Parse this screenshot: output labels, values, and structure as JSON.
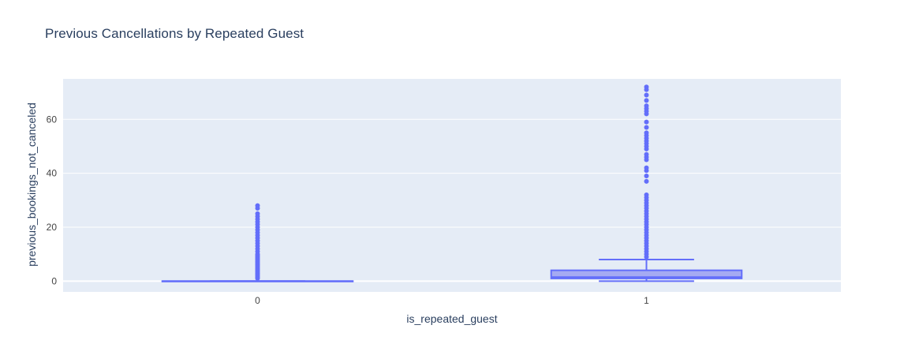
{
  "chart_data": {
    "type": "box",
    "title": "Previous Cancellations by Repeated Guest",
    "xlabel": "is_repeated_guest",
    "ylabel": "previous_bookings_not_canceled",
    "categories": [
      "0",
      "1"
    ],
    "y_ticks": [
      0,
      20,
      40,
      60
    ],
    "ylim": [
      -4,
      75
    ],
    "grid": true,
    "colors": {
      "plot_bg": "#e5ecf6",
      "grid": "#ffffff",
      "box_line": "#636efa",
      "box_fill": "#a5aaf2",
      "marker": "#636efa",
      "text": "#2a3f5f",
      "tick_text": "#444444"
    },
    "boxes": [
      {
        "category": "0",
        "min": 0,
        "q1": 0,
        "median": 0,
        "q3": 0,
        "max": 0,
        "outliers": [
          1,
          1.5,
          2,
          2.5,
          3,
          3.5,
          4,
          4.5,
          5,
          5.5,
          6,
          6.5,
          7,
          7.5,
          8,
          8.5,
          9,
          9.5,
          10,
          11,
          12,
          13,
          14,
          15,
          16,
          17,
          18,
          19,
          20,
          21,
          22,
          23,
          24,
          25,
          27,
          28
        ]
      },
      {
        "category": "1",
        "min": 0,
        "q1": 1,
        "median": 1.5,
        "q3": 4,
        "max": 8,
        "outliers": [
          9,
          10,
          11,
          12,
          13,
          14,
          15,
          16,
          17,
          18,
          19,
          20,
          21,
          22,
          23,
          24,
          25,
          26,
          27,
          28,
          29,
          30,
          31,
          32,
          37,
          39,
          41,
          42,
          45,
          46,
          47,
          49,
          50,
          51,
          52,
          53,
          54,
          55,
          57,
          59,
          62,
          63,
          64,
          65,
          67,
          69,
          71,
          72
        ]
      }
    ]
  }
}
